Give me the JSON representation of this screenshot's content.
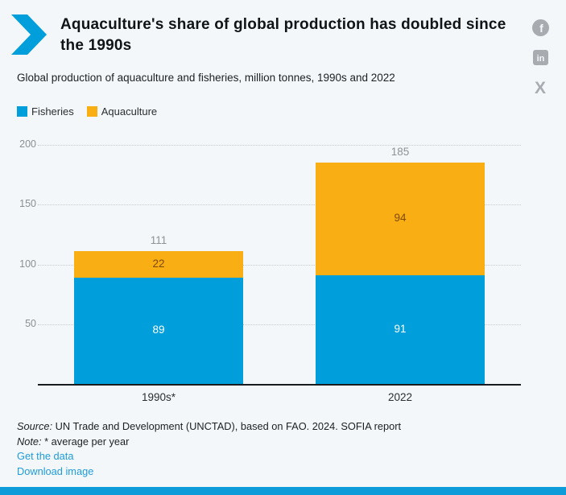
{
  "header": {
    "title": "Aquaculture's share of global production has doubled since the 1990s",
    "subtitle": "Global production of aquaculture and fisheries, million tonnes, 1990s and 2022"
  },
  "social": [
    {
      "name": "facebook",
      "glyph": "f"
    },
    {
      "name": "linkedin",
      "glyph": "in"
    },
    {
      "name": "x",
      "glyph": "X"
    }
  ],
  "legend": [
    {
      "label": "Fisheries",
      "color": "#009EDB"
    },
    {
      "label": "Aquaculture",
      "color": "#F9AE13"
    }
  ],
  "chart_data": {
    "type": "bar",
    "stacked": true,
    "title": "Aquaculture's share of global production has doubled since the 1990s",
    "subtitle": "Global production of aquaculture and fisheries, million tonnes, 1990s and 2022",
    "categories": [
      "1990s*",
      "2022"
    ],
    "series": [
      {
        "name": "Fisheries",
        "values": [
          89,
          91
        ],
        "color": "#009EDB",
        "label_color": "#FFFFFF"
      },
      {
        "name": "Aquaculture",
        "values": [
          22,
          94
        ],
        "color": "#F9AE13",
        "label_color": "#7F4A00"
      }
    ],
    "totals": [
      111,
      185
    ],
    "yticks": [
      50,
      100,
      150,
      200
    ],
    "ylim": [
      0,
      200
    ],
    "grid": "horizontal-dotted",
    "legend_position": "top-left",
    "xlabel": "",
    "ylabel": ""
  },
  "footer": {
    "source_label": "Source:",
    "source_text": " UN Trade and Development (UNCTAD), based on FAO. 2024. SOFIA report",
    "note_label": "Note:",
    "note_text": " * average per year",
    "links": [
      {
        "label": "Get the data"
      },
      {
        "label": "Download image"
      }
    ]
  },
  "colors": {
    "background": "#F3F7FA",
    "accent_blue": "#009EDB",
    "accent_orange": "#F9AE13",
    "link": "#1F9CD9",
    "bottom_bar": "#0D9CD9",
    "icon_gray": "#A8ACB0",
    "total_label": "#8E9294",
    "tick_label": "#8B8F92"
  }
}
